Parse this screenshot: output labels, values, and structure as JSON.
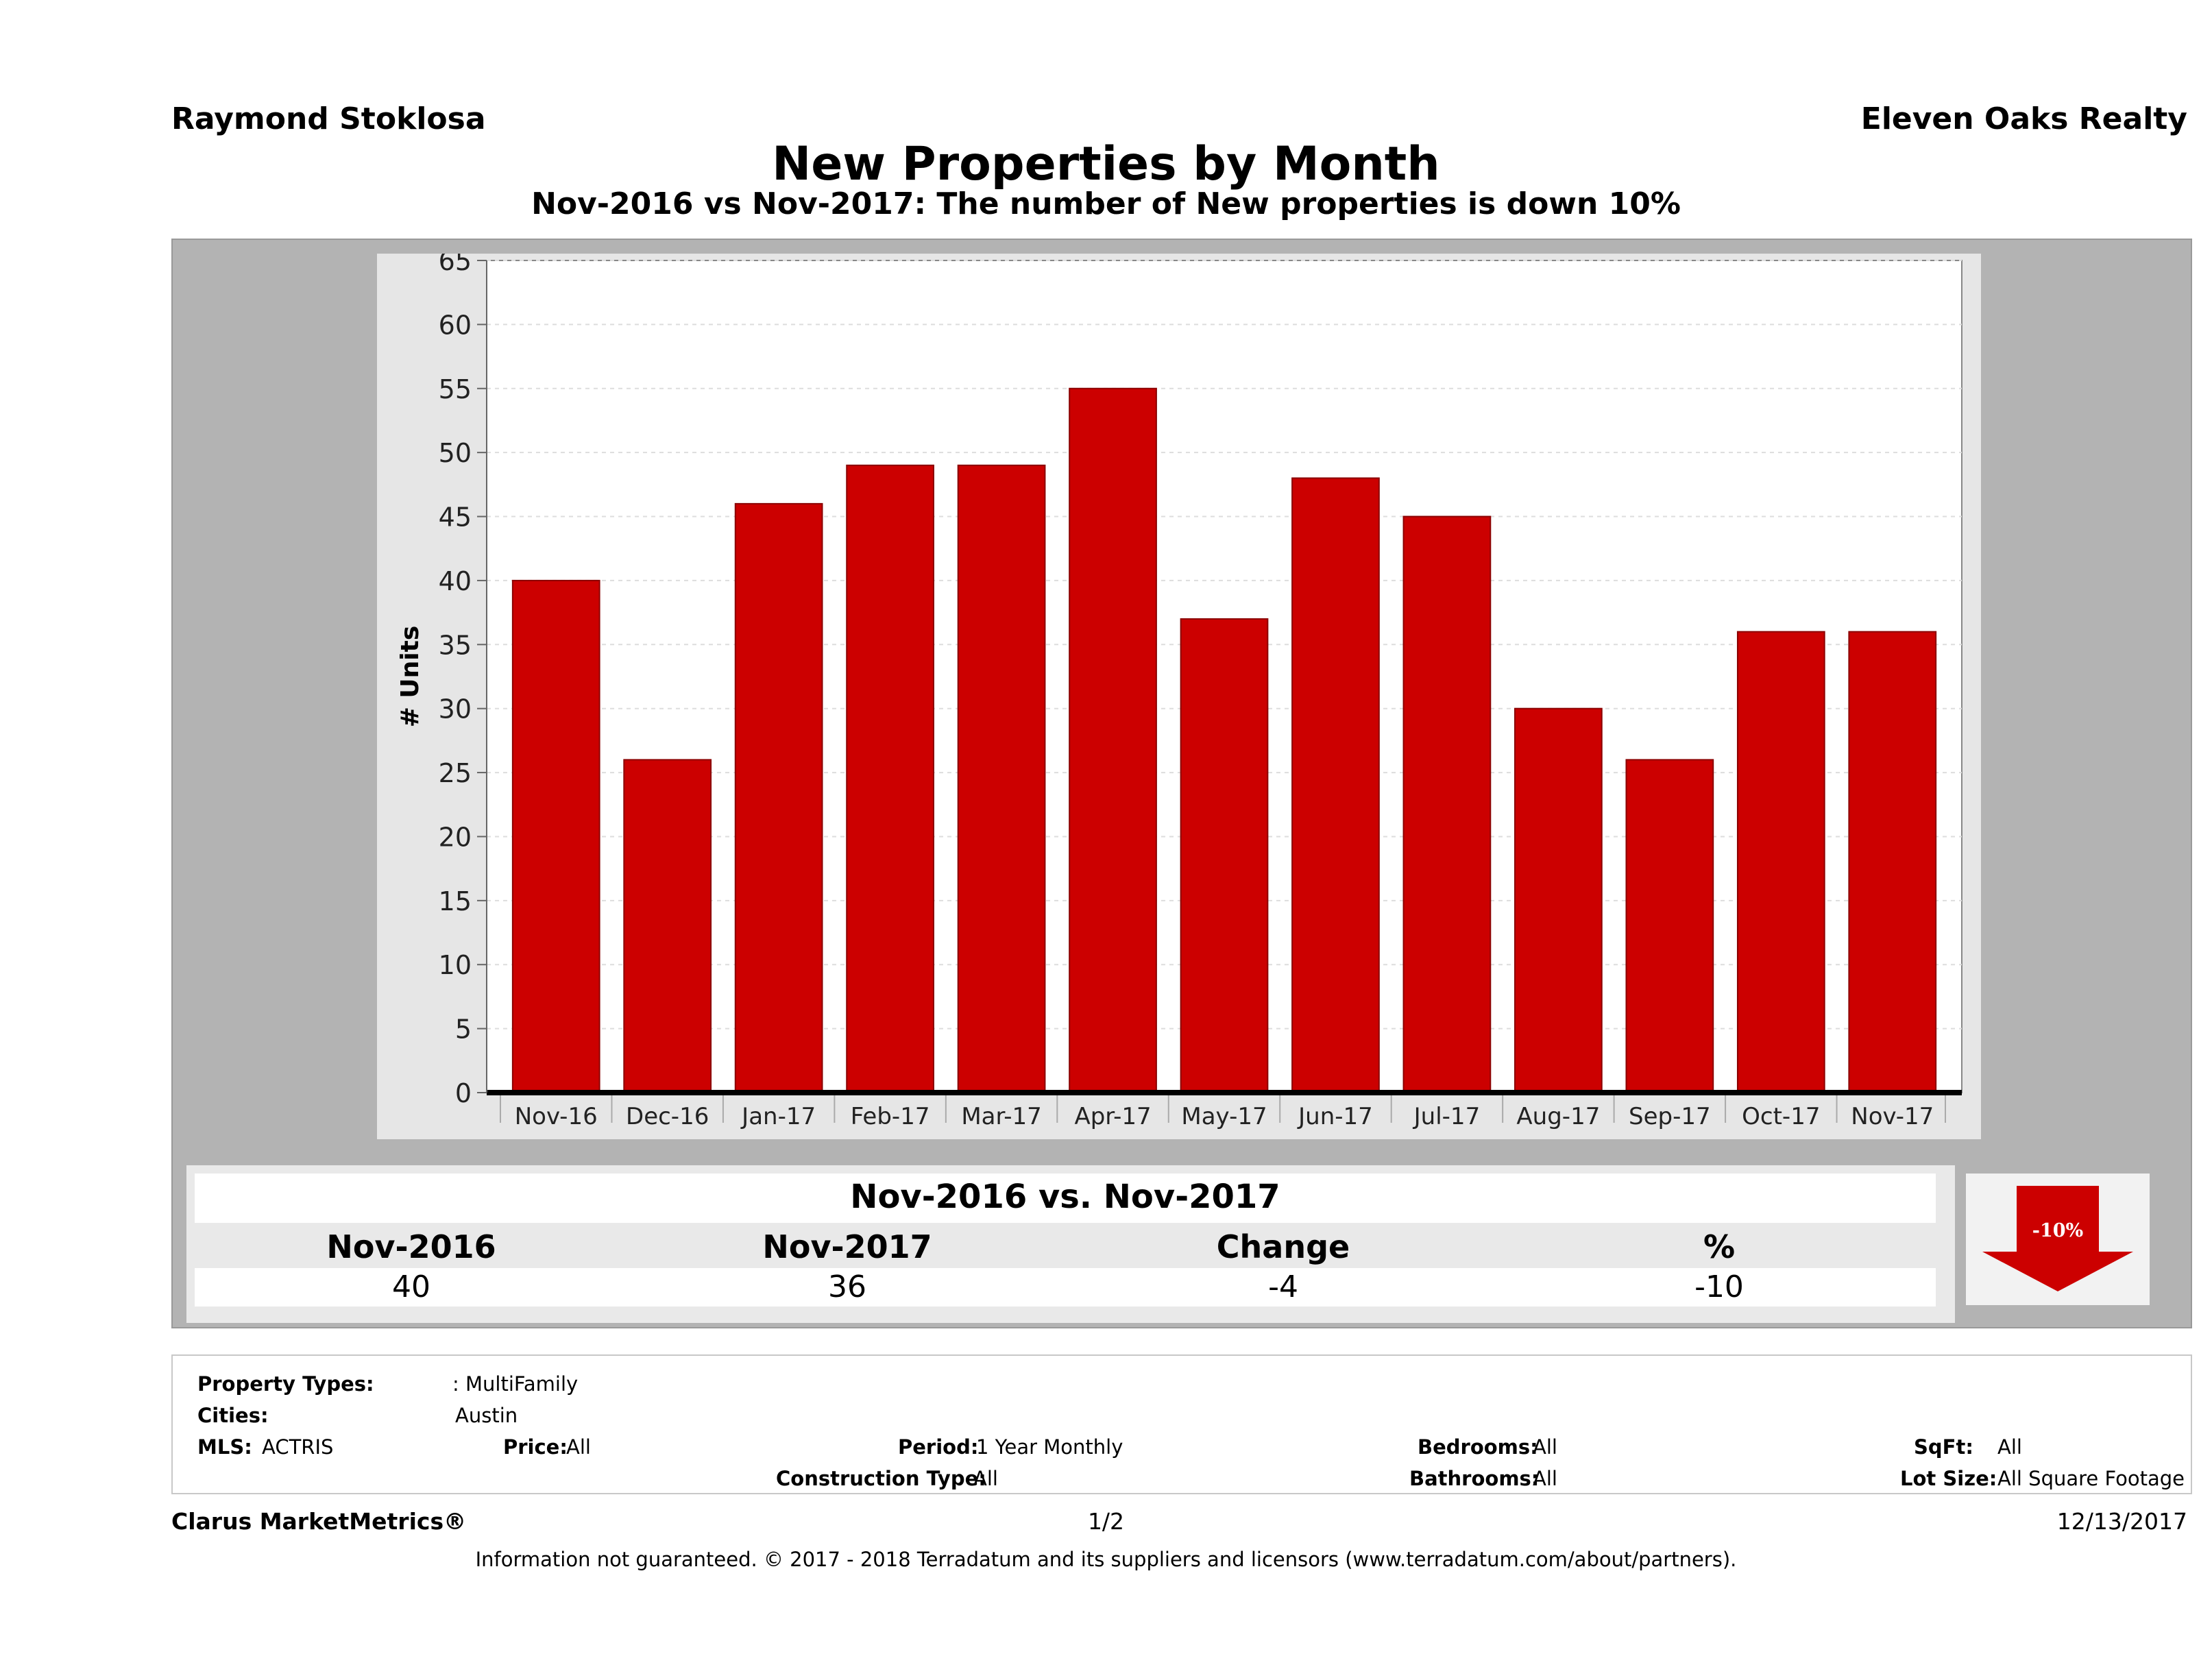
{
  "header": {
    "agent_name": "Raymond Stoklosa",
    "brokerage": "Eleven Oaks Realty",
    "title": "New Properties by Month",
    "subtitle": "Nov-2016 vs Nov-2017: The number of New  properties is down 10%"
  },
  "chart_data": {
    "type": "bar",
    "categories": [
      "Nov-16",
      "Dec-16",
      "Jan-17",
      "Feb-17",
      "Mar-17",
      "Apr-17",
      "May-17",
      "Jun-17",
      "Jul-17",
      "Aug-17",
      "Sep-17",
      "Oct-17",
      "Nov-17"
    ],
    "values": [
      40,
      26,
      46,
      49,
      49,
      55,
      37,
      48,
      45,
      30,
      26,
      36,
      36
    ],
    "ylabel": "# Units",
    "ylim": [
      0,
      65
    ],
    "yticks": [
      0,
      5,
      10,
      15,
      20,
      25,
      30,
      35,
      40,
      45,
      50,
      55,
      60,
      65
    ],
    "bar_color": "#cc0000",
    "grid": true
  },
  "summary": {
    "title": "Nov-2016 vs. Nov-2017",
    "headers": [
      "Nov-2016",
      "Nov-2017",
      "Change",
      "%"
    ],
    "values": [
      "40",
      "36",
      "-4",
      "-10"
    ],
    "change_badge": "-10%",
    "badge_color": "#cc0000"
  },
  "filters": {
    "property_types_label": "Property Types:",
    "property_types_value": ": MultiFamily",
    "cities_label": "Cities:",
    "cities_value": "Austin",
    "mls_label": "MLS:",
    "mls_value": "ACTRIS",
    "price_label": "Price:",
    "price_value": "All",
    "period_label": "Period:",
    "period_value": "1 Year Monthly",
    "construction_label": "Construction Type:",
    "construction_value": "All",
    "bedrooms_label": "Bedrooms:",
    "bedrooms_value": "All",
    "bathrooms_label": "Bathrooms:",
    "bathrooms_value": "All",
    "sqft_label": "SqFt:",
    "sqft_value": "All",
    "lotsize_label": "Lot Size:",
    "lotsize_value": "All Square Footage"
  },
  "footer": {
    "product": "Clarus MarketMetrics®",
    "page": "1/2",
    "date": "12/13/2017",
    "disclaimer": "Information not guaranteed. © 2017 - 2018 Terradatum and its suppliers and licensors (www.terradatum.com/about/partners)."
  }
}
